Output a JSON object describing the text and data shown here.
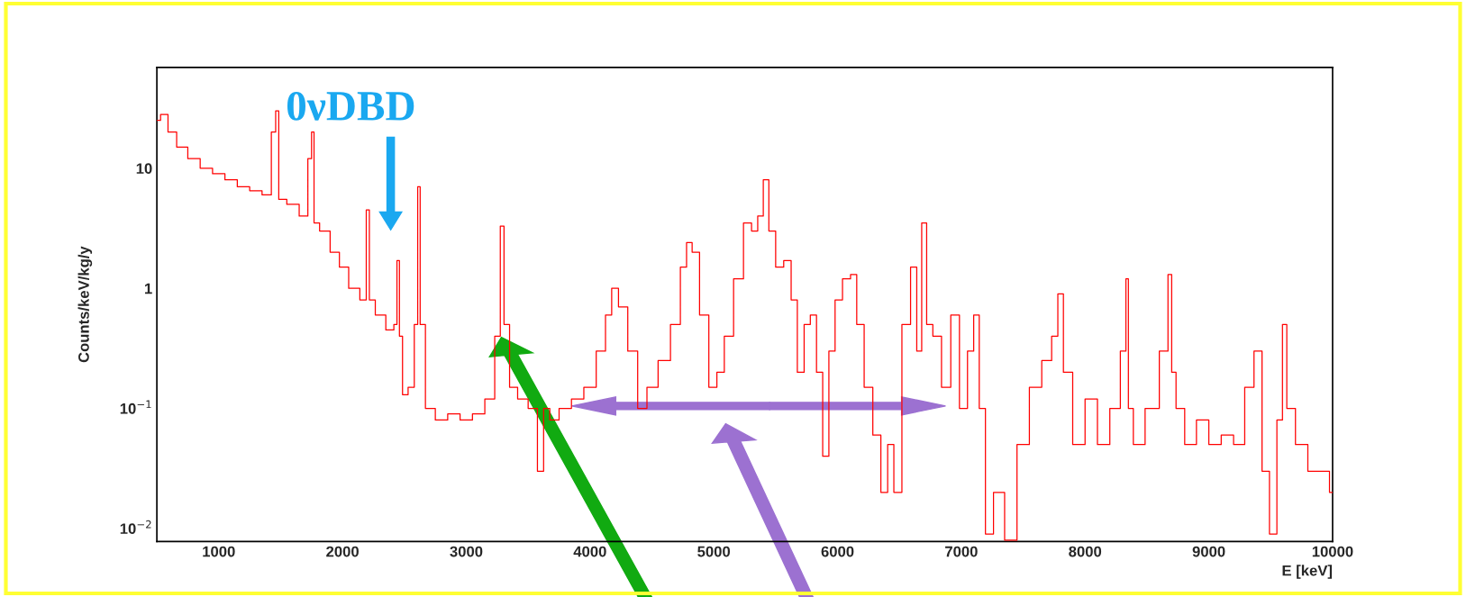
{
  "chart_data": {
    "type": "step",
    "xlabel": "E [keV]",
    "ylabel": "Counts/keV/kg/y",
    "log": "y",
    "xlim": [
      500,
      10000
    ],
    "ylim": [
      0.0078,
      69
    ],
    "xticks": [
      1000,
      2000,
      3000,
      4000,
      5000,
      6000,
      7000,
      8000,
      9000,
      10000
    ],
    "yticks": [
      {
        "value": 0.01,
        "label": "10$^{−2}$"
      },
      {
        "value": 0.1,
        "label": "10$^{−1}$"
      },
      {
        "value": 1,
        "label": "1"
      },
      {
        "value": 10,
        "label": "10"
      }
    ],
    "grid": false,
    "annotations": [
      "0νDBD"
    ],
    "series": [
      {
        "color": "#ff0000",
        "x": [
          500,
          560,
          620,
          700,
          800,
          900,
          1000,
          1100,
          1200,
          1300,
          1400,
          1450,
          1470,
          1500,
          1600,
          1700,
          1740,
          1760,
          1780,
          1850,
          1950,
          2000,
          2100,
          2180,
          2204,
          2230,
          2300,
          2400,
          2430,
          2450,
          2470,
          2500,
          2560,
          2600,
          2615,
          2640,
          2700,
          2800,
          2900,
          3000,
          3100,
          3200,
          3260,
          3290,
          3320,
          3380,
          3450,
          3550,
          3600,
          3650,
          3700,
          3800,
          3900,
          4000,
          4100,
          4150,
          4200,
          4260,
          4350,
          4420,
          4500,
          4600,
          4700,
          4760,
          4800,
          4850,
          4920,
          5000,
          5050,
          5120,
          5200,
          5280,
          5330,
          5380,
          5420,
          5470,
          5530,
          5600,
          5650,
          5700,
          5760,
          5800,
          5860,
          5900,
          5960,
          6000,
          6080,
          6130,
          6180,
          6250,
          6320,
          6380,
          6430,
          6480,
          6560,
          6620,
          6660,
          6700,
          6740,
          6800,
          6880,
          6950,
          7020,
          7080,
          7120,
          7170,
          7220,
          7300,
          7400,
          7500,
          7600,
          7700,
          7760,
          7800,
          7850,
          7950,
          8050,
          8150,
          8250,
          8320,
          8340,
          8360,
          8420,
          8550,
          8650,
          8690,
          8710,
          8760,
          8850,
          8950,
          9050,
          9150,
          9250,
          9330,
          9400,
          9460,
          9520,
          9580,
          9610,
          9650,
          9750,
          9850,
          9950,
          10000
        ],
        "values": [
          25,
          28,
          20,
          15,
          12,
          10,
          9,
          8,
          7,
          6.5,
          6,
          20,
          30,
          5.5,
          5,
          4,
          12,
          20,
          3.5,
          3,
          2,
          1.5,
          1,
          0.8,
          4.5,
          0.8,
          0.6,
          0.45,
          0.5,
          1.7,
          0.4,
          0.13,
          0.15,
          0.5,
          7,
          0.5,
          0.1,
          0.08,
          0.09,
          0.08,
          0.09,
          0.12,
          0.4,
          3.3,
          0.5,
          0.15,
          0.12,
          0.1,
          0.03,
          0.1,
          0.08,
          0.1,
          0.12,
          0.15,
          0.3,
          0.6,
          1.0,
          0.7,
          0.3,
          0.1,
          0.15,
          0.25,
          0.5,
          1.5,
          2.4,
          2.0,
          0.6,
          0.15,
          0.2,
          0.4,
          1.2,
          3.5,
          3.0,
          4.0,
          8.0,
          3.0,
          1.5,
          1.7,
          0.8,
          0.2,
          0.5,
          0.6,
          0.2,
          0.04,
          0.3,
          0.8,
          1.2,
          1.3,
          0.5,
          0.15,
          0.06,
          0.02,
          0.05,
          0.02,
          0.5,
          1.5,
          0.3,
          3.5,
          0.5,
          0.4,
          0.15,
          0.6,
          0.1,
          0.3,
          0.6,
          0.1,
          0.009,
          0.02,
          0.008,
          0.05,
          0.15,
          0.25,
          0.4,
          0.9,
          0.2,
          0.05,
          0.12,
          0.05,
          0.1,
          0.3,
          1.2,
          0.1,
          0.05,
          0.1,
          0.3,
          1.3,
          0.2,
          0.1,
          0.05,
          0.08,
          0.05,
          0.06,
          0.05,
          0.15,
          0.3,
          0.03,
          0.009,
          0.08,
          0.5,
          0.1,
          0.05,
          0.03,
          0.03,
          0.02
        ]
      }
    ]
  }
}
